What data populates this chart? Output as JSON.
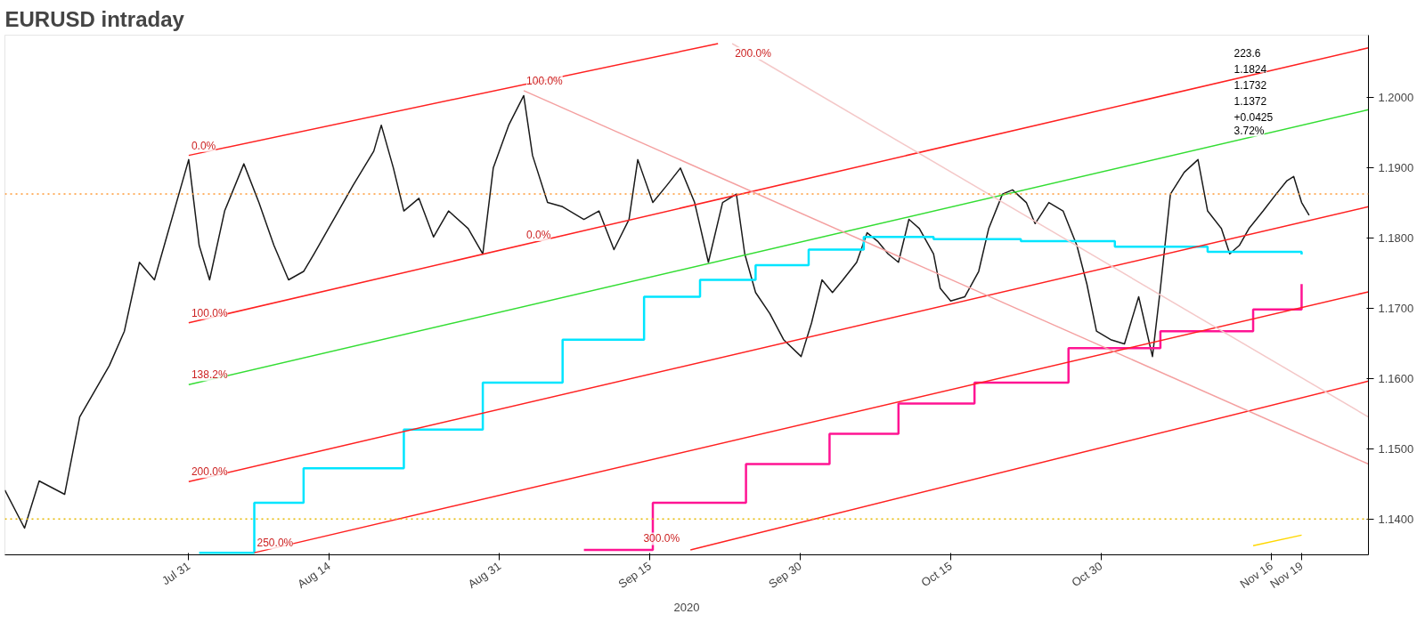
{
  "chart_data": {
    "type": "line",
    "title": "EURUSD intraday",
    "xlabel": "2020",
    "xlim": [
      "2020-07-12T16:00",
      "2020-11-25T16:00"
    ],
    "ylim": [
      1.1349,
      1.2088
    ],
    "xticks": [
      {
        "value": "2020-07-31",
        "label": "Jul 31"
      },
      {
        "value": "2020-08-14",
        "label": "Aug 14"
      },
      {
        "value": "2020-08-31",
        "label": "Aug 31"
      },
      {
        "value": "2020-09-15",
        "label": "Sep 15"
      },
      {
        "value": "2020-09-30",
        "label": "Sep 30"
      },
      {
        "value": "2020-10-15",
        "label": "Oct 15"
      },
      {
        "value": "2020-10-30",
        "label": "Oct 30"
      },
      {
        "value": "2020-11-16",
        "label": "Nov 16"
      },
      {
        "value": "2020-11-19",
        "label": "Nov 19"
      }
    ],
    "yticks": [
      {
        "value": 1.14,
        "label": "1.1400"
      },
      {
        "value": 1.15,
        "label": "1.1500"
      },
      {
        "value": 1.16,
        "label": "1.1600"
      },
      {
        "value": 1.17,
        "label": "1.1700"
      },
      {
        "value": 1.18,
        "label": "1.1800"
      },
      {
        "value": 1.19,
        "label": "1.1900"
      },
      {
        "value": 1.2,
        "label": "1.2000"
      }
    ],
    "grid": false,
    "series": [
      {
        "color": "#1a1a1a",
        "x": [
          "2020-07-12T16:00",
          "2020-07-14T15:00",
          "2020-07-16T02:00",
          "2020-07-18T15:00",
          "2020-07-20T03:00",
          "2020-07-21T15:00",
          "2020-07-23T02:00",
          "2020-07-24T14:00",
          "2020-07-26T02:00",
          "2020-07-27T14:00",
          "2020-07-29T01:00",
          "2020-07-31T00:00",
          "2020-08-01T01:00",
          "2020-08-02T02:00",
          "2020-08-03T14:00",
          "2020-08-05T12:00",
          "2020-08-07T00:00",
          "2020-08-08T12:00",
          "2020-08-09T23:00",
          "2020-08-11T11:00",
          "2020-08-12T12:00",
          "2020-08-14T11:00",
          "2020-08-16T09:00",
          "2020-08-18T11:00",
          "2020-08-19T05:00",
          "2020-08-20T10:00",
          "2020-08-21T11:00",
          "2020-08-22T23:00",
          "2020-08-24T10:00",
          "2020-08-25T22:00",
          "2020-08-27T21:00",
          "2020-08-29T08:00",
          "2020-08-30T09:00",
          "2020-08-31T22:00",
          "2020-09-02T10:00",
          "2020-09-03T07:00",
          "2020-09-04T19:00",
          "2020-09-06T07:00",
          "2020-09-08T10:00",
          "2020-09-09T22:00",
          "2020-09-11T10:00",
          "2020-09-12T22:00",
          "2020-09-13T19:00",
          "2020-09-15T07:00",
          "2020-09-16T16:00",
          "2020-09-18T01:00",
          "2020-09-19T11:00",
          "2020-09-20T20:00",
          "2020-09-22T06:00",
          "2020-09-23T15:00",
          "2020-09-24T11:00",
          "2020-09-25T13:00",
          "2020-09-26T23:00",
          "2020-09-28T08:00",
          "2020-09-30T02:00",
          "2020-10-01T03:00",
          "2020-10-02T04:00",
          "2020-10-03T05:00",
          "2020-10-04T06:00",
          "2020-10-05T15:00",
          "2020-10-06T16:00",
          "2020-10-07T17:00",
          "2020-10-08T18:00",
          "2020-10-09T19:00",
          "2020-10-10T20:00",
          "2020-10-11T21:00",
          "2020-10-13T07:00",
          "2020-10-13T23:00",
          "2020-10-15T00:00",
          "2020-10-16T10:00",
          "2020-10-17T19:00",
          "2020-10-18T19:00",
          "2020-10-20T04:00",
          "2020-10-21T04:00",
          "2020-10-22T13:00",
          "2020-10-23T10:00",
          "2020-10-24T19:00",
          "2020-10-26T05:00",
          "2020-10-27T14:00",
          "2020-10-28T14:00",
          "2020-10-29T13:00",
          "2020-10-30T23:00",
          "2020-11-01T08:00",
          "2020-11-02T18:00",
          "2020-11-04T03:00",
          "2020-11-04T22:00",
          "2020-11-05T22:00",
          "2020-11-07T07:00",
          "2020-11-08T16:00",
          "2020-11-09T15:00",
          "2020-11-11T00:00",
          "2020-11-11T20:00",
          "2020-11-12T19:00",
          "2020-11-13T18:00",
          "2020-11-15T04:00",
          "2020-11-16T11:00",
          "2020-11-17T13:00",
          "2020-11-18T05:00",
          "2020-11-19T00:00",
          "2020-11-19T18:00"
        ],
        "values": [
          1.1441,
          1.1387,
          1.1454,
          1.1435,
          1.1545,
          1.1582,
          1.1618,
          1.1667,
          1.1765,
          1.174,
          1.1813,
          1.1911,
          1.1789,
          1.174,
          1.1838,
          1.1905,
          1.185,
          1.1789,
          1.174,
          1.1752,
          1.1777,
          1.1826,
          1.1874,
          1.1923,
          1.196,
          1.1899,
          1.1838,
          1.1856,
          1.1801,
          1.1838,
          1.1813,
          1.1777,
          1.1899,
          1.196,
          1.2002,
          1.1917,
          1.185,
          1.1844,
          1.1826,
          1.1838,
          1.1783,
          1.1826,
          1.1911,
          1.185,
          1.1874,
          1.1899,
          1.185,
          1.1765,
          1.185,
          1.1862,
          1.1777,
          1.1722,
          1.1692,
          1.1655,
          1.1631,
          1.1679,
          1.174,
          1.1722,
          1.174,
          1.1765,
          1.1807,
          1.1795,
          1.1777,
          1.1765,
          1.1826,
          1.1813,
          1.1777,
          1.1728,
          1.171,
          1.1716,
          1.1752,
          1.1813,
          1.1862,
          1.1868,
          1.185,
          1.182,
          1.185,
          1.1838,
          1.1789,
          1.1734,
          1.1667,
          1.1655,
          1.1649,
          1.1716,
          1.1631,
          1.1728,
          1.1862,
          1.1893,
          1.1911,
          1.1838,
          1.1813,
          1.1777,
          1.1789,
          1.1813,
          1.1838,
          1.1862,
          1.1881,
          1.1887,
          1.185,
          1.1832
        ]
      },
      {
        "type": "step",
        "color": "#00e5ff",
        "x": [
          "2020-08-01T01:00",
          "2020-08-06T13:00",
          "2020-08-11T11:00",
          "2020-08-21T11:00",
          "2020-08-29T08:00",
          "2020-09-06T07:00",
          "2020-09-14T10:00",
          "2020-09-20T00:00",
          "2020-09-25T13:00",
          "2020-09-30T20:00",
          "2020-10-06T08:00",
          "2020-10-13T07:00",
          "2020-10-22T00:00",
          "2020-10-31T09:00",
          "2020-11-09T15:00",
          "2020-11-19T00:00"
        ],
        "values": [
          1.1352,
          1.1423,
          1.1472,
          1.1527,
          1.1594,
          1.1655,
          1.1716,
          1.174,
          1.1761,
          1.1783,
          1.1801,
          1.1798,
          1.1795,
          1.1787,
          1.178,
          1.1776
        ]
      },
      {
        "type": "step",
        "color": "#ff1493",
        "x": [
          "2020-09-08T10:00",
          "2020-09-15T07:00",
          "2020-09-24T14:00",
          "2020-10-02T22:00",
          "2020-10-09T19:00",
          "2020-10-17T09:00",
          "2020-10-26T18:00",
          "2020-11-04T22:00",
          "2020-11-14T04:00",
          "2020-11-19T00:00"
        ],
        "values": [
          1.1356,
          1.1423,
          1.1478,
          1.1521,
          1.1564,
          1.1594,
          1.1643,
          1.1667,
          1.1698,
          1.1734
        ]
      },
      {
        "color": "#ffd700",
        "x": [
          "2020-11-14T04:00",
          "2020-11-19T00:00"
        ],
        "values": [
          1.1362,
          1.1377
        ]
      },
      {
        "color": "#ff2020",
        "x": [
          "2020-07-31T00:00",
          "2020-09-21T19:00"
        ],
        "values": [
          1.1917,
          1.2076
        ]
      },
      {
        "color": "#ff2020",
        "x": [
          "2020-07-31T00:00",
          "2020-11-25T16:00"
        ],
        "values": [
          1.1679,
          1.207
        ]
      },
      {
        "color": "#33dd33",
        "x": [
          "2020-07-31T00:00",
          "2020-11-25T16:00"
        ],
        "values": [
          1.1591,
          1.1982
        ]
      },
      {
        "color": "#ff2020",
        "x": [
          "2020-07-31T00:00",
          "2020-11-25T16:00"
        ],
        "values": [
          1.1453,
          1.1844
        ]
      },
      {
        "color": "#ff2020",
        "x": [
          "2020-08-06T13:00",
          "2020-11-25T16:00"
        ],
        "values": [
          1.1352,
          1.1723
        ]
      },
      {
        "color": "#ff2020",
        "x": [
          "2020-09-19T01:00",
          "2020-11-25T16:00"
        ],
        "values": [
          1.1356,
          1.1596
        ]
      },
      {
        "color": "#f4a0a0",
        "x": [
          "2020-09-02T10:00",
          "2020-11-25T16:00"
        ],
        "values": [
          1.2009,
          1.1478
        ]
      },
      {
        "color": "#f4c8c8",
        "x": [
          "2020-09-23T05:00",
          "2020-11-25T16:00"
        ],
        "values": [
          1.2076,
          1.1545
        ]
      }
    ],
    "ref_lines": [
      {
        "axis": "y",
        "value": 1.1862,
        "color": "#ff9933",
        "line_style": "dotted"
      },
      {
        "axis": "y",
        "value": 1.14,
        "color": "#e6b800",
        "line_style": "dotted"
      }
    ],
    "annotations": [
      {
        "text": "0.0%",
        "x": "2020-07-31T00:00",
        "y": 1.1917
      },
      {
        "text": "100.0%",
        "x": "2020-07-31T00:00",
        "y": 1.1679
      },
      {
        "text": "138.2%",
        "x": "2020-07-31T00:00",
        "y": 1.1591
      },
      {
        "text": "200.0%",
        "x": "2020-07-31T00:00",
        "y": 1.1453
      },
      {
        "text": "250.0%",
        "x": "2020-08-06T13:00",
        "y": 1.1352
      },
      {
        "text": "300.0%",
        "x": "2020-09-14T02:00",
        "y": 1.1358
      },
      {
        "text": "100.0%",
        "x": "2020-09-02T10:00",
        "y": 1.2009
      },
      {
        "text": "0.0%",
        "x": "2020-09-02T10:00",
        "y": 1.179
      },
      {
        "text": "200.0%",
        "x": "2020-09-23T05:00",
        "y": 1.2076
      },
      "223.6",
      "1.1824",
      "1.1732",
      "1.1372",
      "+0.0425",
      "3.72%"
    ]
  }
}
